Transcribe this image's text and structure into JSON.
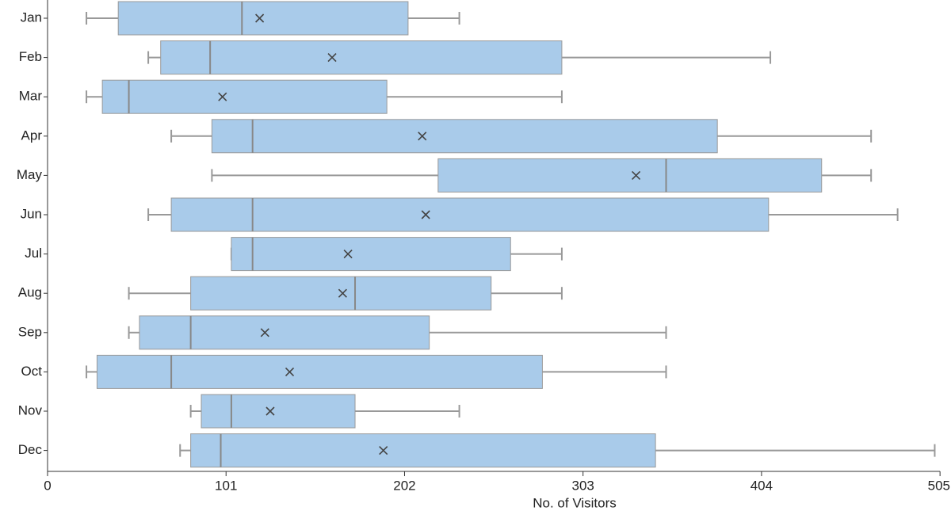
{
  "chart_data": {
    "type": "box",
    "x_label": "No. of Visitors",
    "categories": [
      "Jan",
      "Feb",
      "Mar",
      "Apr",
      "May",
      "Jun",
      "Jul",
      "Aug",
      "Sep",
      "Oct",
      "Nov",
      "Dec"
    ],
    "min": [
      22,
      57,
      22,
      70,
      93,
      57,
      104,
      46,
      46,
      22,
      81,
      75
    ],
    "q1": [
      40,
      64,
      31,
      93,
      221,
      70,
      104,
      81,
      52,
      28,
      87,
      81
    ],
    "median": [
      110,
      92,
      46,
      116,
      350,
      116,
      116,
      174,
      81,
      70,
      104,
      98
    ],
    "q3": [
      204,
      291,
      192,
      379,
      438,
      408,
      262,
      251,
      216,
      280,
      174,
      344
    ],
    "max": [
      233,
      409,
      291,
      466,
      466,
      481,
      291,
      291,
      350,
      350,
      233,
      502
    ],
    "mean": [
      120,
      161,
      99,
      212,
      333,
      214,
      170,
      167,
      123,
      137,
      126,
      190
    ],
    "color": "#a9cbea",
    "xlim": [
      0,
      505
    ],
    "xticks": [
      0,
      101,
      202,
      303,
      404,
      505
    ]
  }
}
